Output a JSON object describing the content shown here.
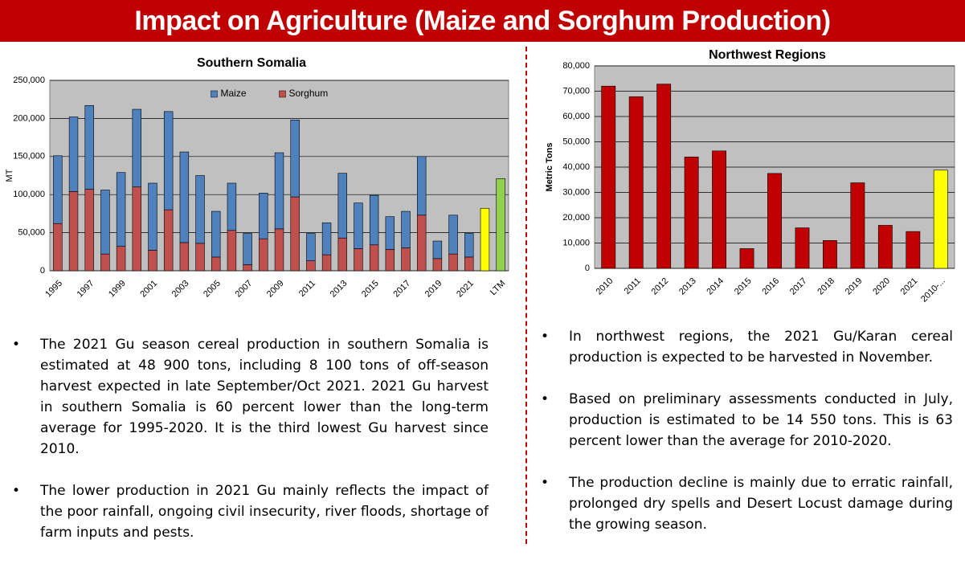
{
  "title": "Impact on Agriculture (Maize and Sorghum Production)",
  "chart_data": [
    {
      "type": "stacked-bar",
      "title": "Southern Somalia",
      "y_label": "MT",
      "categories": [
        "1995",
        null,
        "1997",
        null,
        "1999",
        null,
        "2001",
        null,
        "2003",
        null,
        "2005",
        null,
        "2007",
        null,
        "2009",
        null,
        "2011",
        null,
        "2013",
        null,
        "2015",
        null,
        "2017",
        null,
        "2019",
        null,
        "2021",
        null,
        "LTM"
      ],
      "series": [
        {
          "name": "Sorghum",
          "color": "#c0504d",
          "values": [
            62000,
            104000,
            107000,
            22000,
            32000,
            110000,
            27000,
            80000,
            37000,
            36000,
            18000,
            53000,
            8000,
            42000,
            55000,
            97000,
            13000,
            21000,
            43000,
            29000,
            34000,
            28000,
            30000,
            73000,
            16000,
            22000,
            18000,
            null,
            null
          ]
        },
        {
          "name": "Maize",
          "color": "#4f81bd",
          "values": [
            89000,
            98000,
            110000,
            84000,
            97000,
            102000,
            88000,
            129000,
            119000,
            89000,
            60000,
            62000,
            41000,
            60000,
            100000,
            101000,
            36000,
            42000,
            85000,
            60000,
            65000,
            43000,
            48000,
            77000,
            23000,
            51000,
            31000,
            null,
            null
          ]
        },
        {
          "color": "#ffff00",
          "values": [
            null,
            null,
            null,
            null,
            null,
            null,
            null,
            null,
            null,
            null,
            null,
            null,
            null,
            null,
            null,
            null,
            null,
            null,
            null,
            null,
            null,
            null,
            null,
            null,
            null,
            null,
            null,
            82000,
            null
          ]
        },
        {
          "color": "#92d050",
          "values": [
            null,
            null,
            null,
            null,
            null,
            null,
            null,
            null,
            null,
            null,
            null,
            null,
            null,
            null,
            null,
            null,
            null,
            null,
            null,
            null,
            null,
            null,
            null,
            null,
            null,
            null,
            null,
            null,
            121000
          ]
        }
      ],
      "ylim": [
        0,
        250000
      ],
      "yticks": [
        0,
        {
          "value": 50000,
          "label": "50,000"
        },
        {
          "value": 100000,
          "label": "100,000"
        },
        {
          "value": 150000,
          "label": "150,000"
        },
        {
          "value": 200000,
          "label": "200,000"
        },
        {
          "value": 250000,
          "label": "250,000"
        }
      ],
      "grid": true,
      "legend": "top"
    },
    {
      "type": "bar",
      "title": "Northwest Regions",
      "y_label": "Metric Tons",
      "categories": [
        "2010",
        "2011",
        "2012",
        "2013",
        "2014",
        "2015",
        "2016",
        "2017",
        "2018",
        "2019",
        "2020",
        "2021",
        "2010-..."
      ],
      "values": [
        72000,
        67800,
        72800,
        44000,
        46400,
        7800,
        37500,
        16000,
        11000,
        33800,
        17000,
        14550,
        38800
      ],
      "colors": [
        "#c00000",
        "#c00000",
        "#c00000",
        "#c00000",
        "#c00000",
        "#c00000",
        "#c00000",
        "#c00000",
        "#c00000",
        "#c00000",
        "#c00000",
        "#c00000",
        "#ffff00"
      ],
      "ylim": [
        0,
        80000
      ],
      "yticks": [
        0,
        {
          "value": 10000,
          "label": "10,000"
        },
        {
          "value": 20000,
          "label": "20,000"
        },
        {
          "value": 30000,
          "label": "30,000"
        },
        {
          "value": 40000,
          "label": "40,000"
        },
        {
          "value": 50000,
          "label": "50,000"
        },
        {
          "value": 60000,
          "label": "60,000"
        },
        {
          "value": 70000,
          "label": "70,000"
        },
        {
          "value": 80000,
          "label": "80,000"
        }
      ],
      "grid": true
    }
  ],
  "bullets_left": [
    "The 2021 Gu season cereal production in southern Somalia is estimated at 48 900 tons, including 8 100 tons of off-season harvest expected in late September/Oct 2021. 2021 Gu harvest in southern Somalia is 60 percent lower than the long-term average for 1995-2020. It is the third lowest Gu harvest since 2010.",
    "The lower production in 2021 Gu mainly reflects the impact of the poor rainfall, ongoing civil insecurity, river floods, shortage of farm inputs and pests."
  ],
  "bullets_right": [
    "In northwest regions, the 2021 Gu/Karan cereal production is expected to be harvested in November.",
    "Based on preliminary assessments conducted in July, production is estimated to be 14 550 tons. This is 63 percent lower than the average for 2010-2020.",
    "The production decline is mainly due to erratic rainfall, prolonged dry spells and Desert Locust damage during the growing season."
  ]
}
